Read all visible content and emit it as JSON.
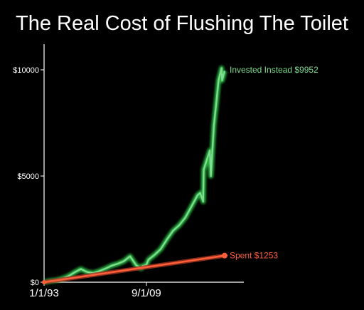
{
  "chart_data": {
    "type": "line",
    "title": "The Real Cost of Flushing The Toilet",
    "xlabel": "",
    "ylabel": "",
    "x_ticks": [
      "1/1/93",
      "9/1/09"
    ],
    "y_ticks": [
      "$0",
      "$5000",
      "$10000"
    ],
    "ylim": [
      0,
      10000
    ],
    "grid": false,
    "series": [
      {
        "name": "Invested Instead",
        "end_label": "Invested Instead $9952",
        "color": "#7ddc8e",
        "glow": "#2fc24a",
        "x": [
          "1993",
          "1994",
          "1995",
          "1996",
          "1997",
          "1998",
          "1999",
          "2000",
          "2001",
          "2002",
          "2003",
          "2004",
          "2005",
          "2006",
          "2007",
          "2008",
          "2008-11",
          "2009",
          "2009-09",
          "2010",
          "2011",
          "2012",
          "2013",
          "2014",
          "2015",
          "2016",
          "2017",
          "2018",
          "2018-06",
          "2018-12",
          "2019",
          "2020",
          "2020-03",
          "2020-09",
          "2021",
          "2021-06",
          "2021-12",
          "2022-01",
          "2022-06"
        ],
        "values": [
          0,
          60,
          90,
          170,
          290,
          470,
          620,
          480,
          430,
          520,
          640,
          780,
          870,
          990,
          1220,
          800,
          650,
          760,
          820,
          1060,
          1290,
          1560,
          2010,
          2420,
          2680,
          3040,
          3560,
          4100,
          4200,
          3800,
          5300,
          6200,
          5000,
          7400,
          8300,
          9500,
          10080,
          9500,
          9952
        ]
      },
      {
        "name": "Spent",
        "end_label": "Spent $1253",
        "color": "#ff5e3a",
        "x": [
          "1993",
          "2022-06"
        ],
        "values": [
          0,
          1253
        ]
      }
    ]
  }
}
